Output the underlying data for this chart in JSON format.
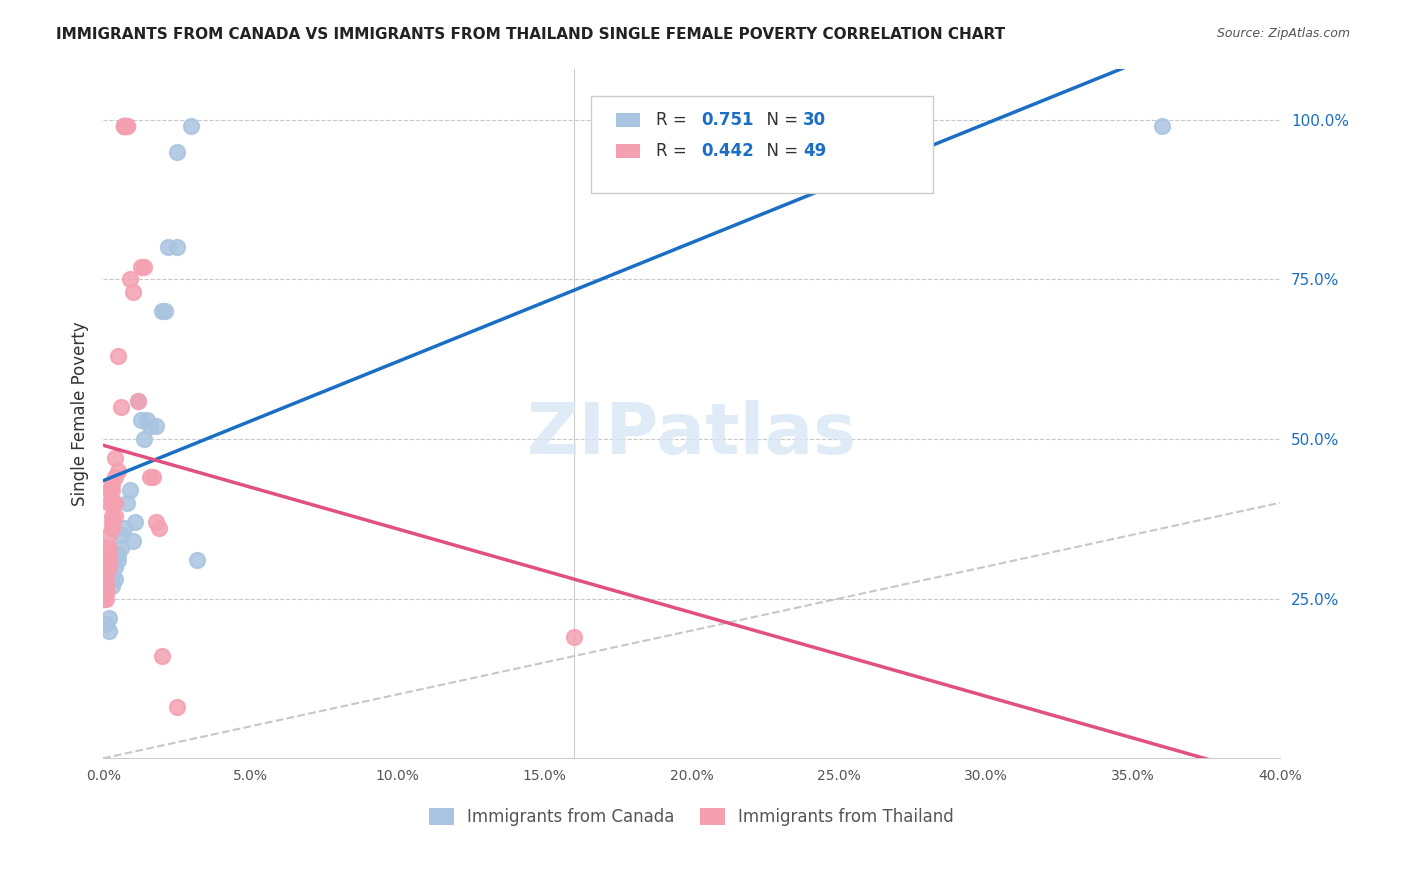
{
  "title": "IMMIGRANTS FROM CANADA VS IMMIGRANTS FROM THAILAND SINGLE FEMALE POVERTY CORRELATION CHART",
  "source": "Source: ZipAtlas.com",
  "xlabel_bottom": "",
  "ylabel": "Single Female Poverty",
  "x_label_bottom_left": "0.0%",
  "x_label_bottom_right": "40.0%",
  "y_ticks_right": [
    "25.0%",
    "50.0%",
    "75.0%",
    "100.0%"
  ],
  "canada_R": 0.751,
  "canada_N": 30,
  "thailand_R": 0.442,
  "thailand_N": 49,
  "canada_color": "#a8c4e0",
  "thailand_color": "#f4a0b0",
  "canada_line_color": "#1a6fc4",
  "thailand_line_color": "#e05080",
  "diagonal_color": "#c0c0c0",
  "watermark": "ZIPatlas",
  "canada_points": [
    [
      0.001,
      0.21
    ],
    [
      0.002,
      0.2
    ],
    [
      0.002,
      0.22
    ],
    [
      0.003,
      0.28
    ],
    [
      0.003,
      0.27
    ],
    [
      0.004,
      0.3
    ],
    [
      0.004,
      0.28
    ],
    [
      0.005,
      0.32
    ],
    [
      0.005,
      0.31
    ],
    [
      0.006,
      0.35
    ],
    [
      0.006,
      0.33
    ],
    [
      0.007,
      0.36
    ],
    [
      0.008,
      0.4
    ],
    [
      0.009,
      0.42
    ],
    [
      0.01,
      0.34
    ],
    [
      0.011,
      0.37
    ],
    [
      0.012,
      0.56
    ],
    [
      0.013,
      0.53
    ],
    [
      0.014,
      0.5
    ],
    [
      0.015,
      0.53
    ],
    [
      0.016,
      0.52
    ],
    [
      0.018,
      0.52
    ],
    [
      0.02,
      0.7
    ],
    [
      0.021,
      0.7
    ],
    [
      0.022,
      0.8
    ],
    [
      0.025,
      0.8
    ],
    [
      0.025,
      0.95
    ],
    [
      0.03,
      0.99
    ],
    [
      0.032,
      0.31
    ],
    [
      0.36,
      0.99
    ]
  ],
  "thailand_points": [
    [
      0.0,
      0.25
    ],
    [
      0.0,
      0.25
    ],
    [
      0.001,
      0.25
    ],
    [
      0.001,
      0.26
    ],
    [
      0.001,
      0.26
    ],
    [
      0.001,
      0.27
    ],
    [
      0.001,
      0.28
    ],
    [
      0.001,
      0.29
    ],
    [
      0.001,
      0.32
    ],
    [
      0.001,
      0.33
    ],
    [
      0.002,
      0.3
    ],
    [
      0.002,
      0.31
    ],
    [
      0.002,
      0.32
    ],
    [
      0.002,
      0.33
    ],
    [
      0.002,
      0.35
    ],
    [
      0.002,
      0.4
    ],
    [
      0.002,
      0.42
    ],
    [
      0.003,
      0.36
    ],
    [
      0.003,
      0.37
    ],
    [
      0.003,
      0.38
    ],
    [
      0.003,
      0.4
    ],
    [
      0.003,
      0.42
    ],
    [
      0.003,
      0.43
    ],
    [
      0.004,
      0.38
    ],
    [
      0.004,
      0.4
    ],
    [
      0.004,
      0.44
    ],
    [
      0.004,
      0.47
    ],
    [
      0.005,
      0.45
    ],
    [
      0.005,
      0.63
    ],
    [
      0.006,
      0.55
    ],
    [
      0.007,
      0.99
    ],
    [
      0.007,
      0.99
    ],
    [
      0.007,
      0.99
    ],
    [
      0.007,
      0.99
    ],
    [
      0.007,
      0.99
    ],
    [
      0.008,
      0.99
    ],
    [
      0.008,
      0.99
    ],
    [
      0.009,
      0.75
    ],
    [
      0.01,
      0.73
    ],
    [
      0.012,
      0.56
    ],
    [
      0.013,
      0.77
    ],
    [
      0.014,
      0.77
    ],
    [
      0.016,
      0.44
    ],
    [
      0.017,
      0.44
    ],
    [
      0.018,
      0.37
    ],
    [
      0.019,
      0.36
    ],
    [
      0.02,
      0.16
    ],
    [
      0.025,
      0.08
    ],
    [
      0.16,
      0.19
    ]
  ]
}
